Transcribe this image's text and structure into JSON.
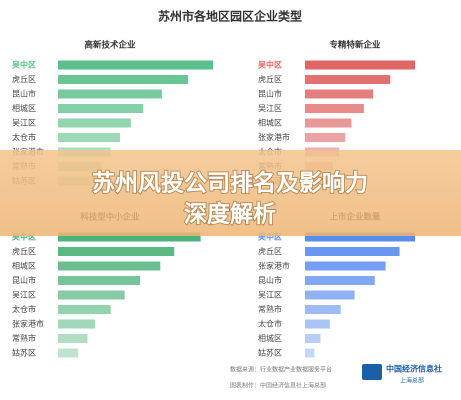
{
  "title": "苏州市各地区园区企业类型",
  "banner": {
    "line1": "苏州风投公司排名及影响力",
    "line2": "深度解析"
  },
  "footer": {
    "source": "数据来源：行业数据产业数据服务平台",
    "maker": "图表制作：中国经济信息社上海总部",
    "logo": "中国经济信息社",
    "logo_sub": "上海总部"
  },
  "chart_data": [
    {
      "type": "bar",
      "title": "高新技术企业",
      "color": "#5cc08a",
      "xlim": [
        0,
        100
      ],
      "categories": [
        "吴中区",
        "虎丘区",
        "昆山市",
        "相城区",
        "吴江区",
        "太仓市",
        "张家港市",
        "常熟市",
        "姑苏区"
      ],
      "values": [
        100,
        84,
        67,
        55,
        47,
        40,
        34,
        28,
        24
      ]
    },
    {
      "type": "bar",
      "title": "专精特新企业",
      "color": "#e06666",
      "xlim": [
        0,
        100
      ],
      "categories": [
        "吴中区",
        "虎丘区",
        "昆山市",
        "吴江区",
        "相城区",
        "张家港市",
        "太仓市",
        "常熟市",
        "姑苏区"
      ],
      "values": [
        71,
        55,
        44,
        38,
        30,
        26,
        22,
        18,
        15
      ]
    },
    {
      "type": "bar",
      "title": "科技型中小企业",
      "color": "#4db27a",
      "xlim": [
        0,
        100
      ],
      "categories": [
        "吴中区",
        "虎丘区",
        "相城区",
        "昆山市",
        "吴江区",
        "太仓市",
        "张家港市",
        "常熟市",
        "姑苏区"
      ],
      "values": [
        92,
        75,
        66,
        53,
        43,
        34,
        24,
        19,
        13
      ]
    },
    {
      "type": "bar",
      "title": "上市企业数量",
      "color": "#5b8def",
      "xlim": [
        0,
        100
      ],
      "categories": [
        "吴中区",
        "虎丘区",
        "张家港市",
        "昆山市",
        "吴江区",
        "常熟市",
        "太仓市",
        "相城区",
        "姑苏区"
      ],
      "values": [
        71,
        61,
        52,
        45,
        32,
        23,
        16,
        10,
        6
      ]
    }
  ]
}
